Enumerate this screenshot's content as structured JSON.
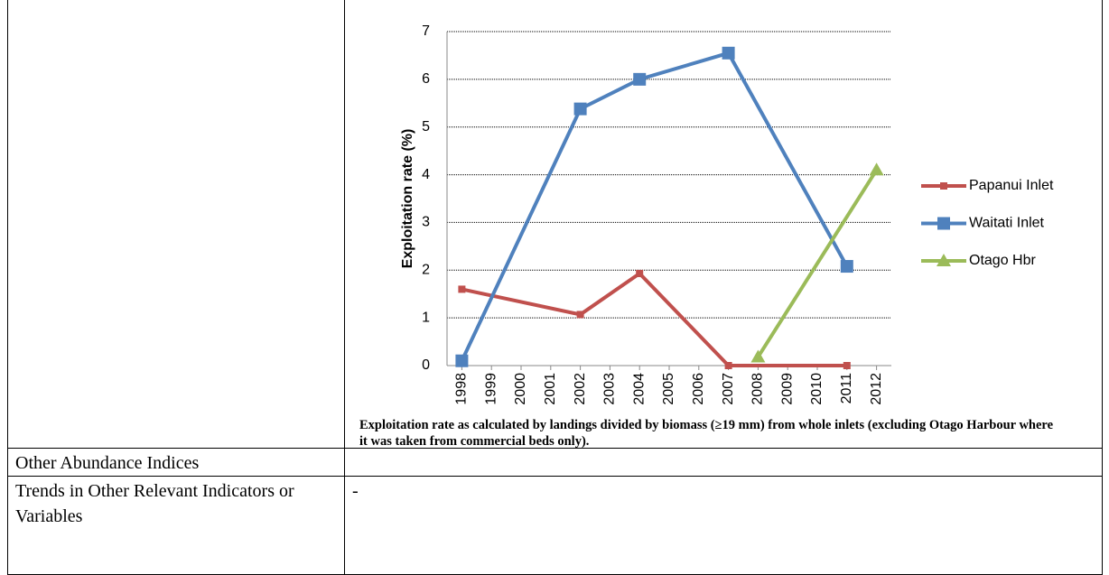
{
  "chart_data": {
    "type": "line",
    "y_label": "Exploitation rate (%)",
    "caption": "Exploitation rate as calculated by landings divided by biomass (≥19 mm) from whole inlets (excluding Otago Harbour where it was taken from commercial beds only).",
    "xlim": [
      1997.5,
      2012.5
    ],
    "xticks": [
      1998,
      1999,
      2000,
      2001,
      2002,
      2003,
      2004,
      2005,
      2006,
      2007,
      2008,
      2009,
      2010,
      2011,
      2012
    ],
    "ylim": [
      0,
      7
    ],
    "yticks": [
      0,
      1,
      2,
      3,
      4,
      5,
      6,
      7
    ],
    "grid": true,
    "legend": "right",
    "series": [
      {
        "name": "Papanui Inlet",
        "color": "#c0504d",
        "marker": "square-small",
        "x": [
          1998,
          2002,
          2004,
          2007,
          2011
        ],
        "values": [
          1.6,
          1.07,
          1.93,
          0,
          0
        ]
      },
      {
        "name": "Waitati Inlet",
        "color": "#4f81bd",
        "marker": "square",
        "x": [
          1998,
          2002,
          2004,
          2007,
          2011
        ],
        "values": [
          0.1,
          5.38,
          6.0,
          6.55,
          2.08
        ]
      },
      {
        "name": "Otago Hbr",
        "color": "#9bbb59",
        "marker": "triangle",
        "x": [
          2008,
          2012
        ],
        "values": [
          0.18,
          4.1
        ]
      }
    ]
  },
  "table": {
    "rows": [
      [
        "Other Abundance Indices",
        ""
      ],
      [
        "Trends in Other Relevant Indicators or Variables",
        "-"
      ]
    ]
  }
}
